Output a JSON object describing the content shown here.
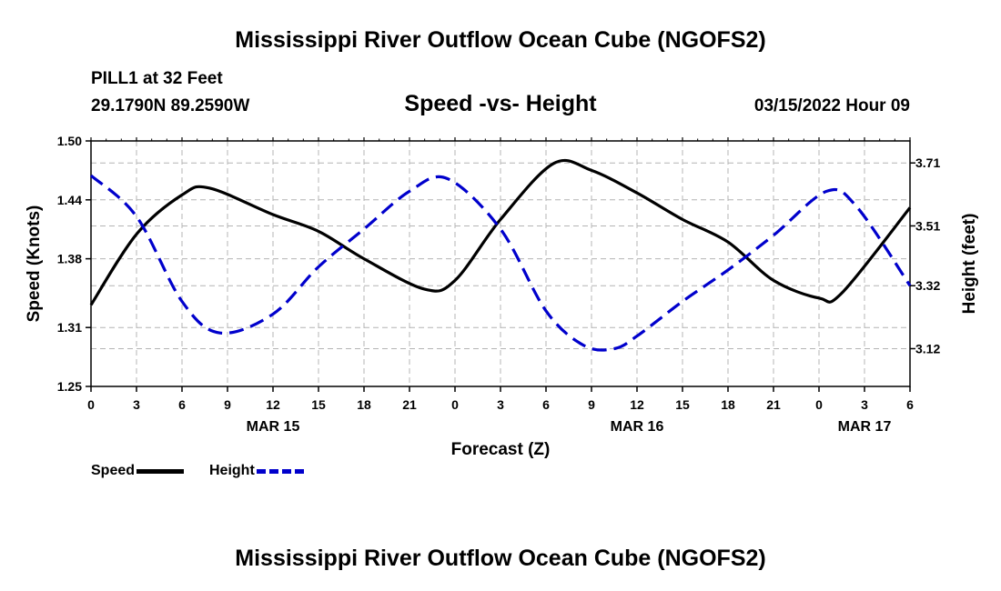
{
  "page": {
    "title": "Mississippi River Outflow Ocean Cube (NGOFS2)",
    "station": "PILL1 at 32 Feet",
    "coords": "29.1790N  89.2590W",
    "subtitle": "Speed -vs- Height",
    "datetime": "03/15/2022 Hour 09",
    "bottom_title": "Mississippi River Outflow Ocean Cube (NGOFS2)"
  },
  "legend": {
    "speed_label": "Speed",
    "height_label": "Height"
  },
  "colors": {
    "speed": "#000000",
    "height": "#0000cc",
    "grid": "#b4b4b4"
  },
  "chart_data": {
    "type": "line",
    "title": "Speed -vs- Height",
    "xlabel": "Forecast (Z)",
    "ylabel": "Speed (Knots)",
    "y2label": "Height (feet)",
    "x_range": [
      0,
      54
    ],
    "x_tick_labels": [
      "0",
      "3",
      "6",
      "9",
      "12",
      "15",
      "18",
      "21",
      "0",
      "3",
      "6",
      "9",
      "12",
      "15",
      "18",
      "21",
      "0",
      "3",
      "6"
    ],
    "date_labels": [
      {
        "hour": 12,
        "label": "MAR 15"
      },
      {
        "hour": 36,
        "label": "MAR 16"
      },
      {
        "hour": 51,
        "label": "MAR 17"
      }
    ],
    "ylim": [
      1.25,
      1.5
    ],
    "y_ticks": [
      "1.25",
      "1.31",
      "1.38",
      "1.44",
      "1.50"
    ],
    "y2lim": [
      3.0,
      3.78
    ],
    "y2_ticks": [
      "3.12",
      "3.32",
      "3.51",
      "3.71"
    ],
    "grid": true,
    "series": [
      {
        "name": "Speed",
        "axis": "left",
        "style": "solid",
        "x": [
          0,
          3,
          6,
          7.8,
          12,
          15,
          18,
          22,
          24,
          27,
          30.5,
          33,
          36,
          39,
          42,
          45,
          48,
          49.5,
          54
        ],
        "values": [
          1.333,
          1.405,
          1.445,
          1.452,
          1.425,
          1.408,
          1.38,
          1.349,
          1.358,
          1.42,
          1.477,
          1.47,
          1.447,
          1.42,
          1.397,
          1.358,
          1.34,
          1.345,
          1.432
        ]
      },
      {
        "name": "Height",
        "axis": "right",
        "style": "dashed",
        "x": [
          0,
          3,
          6,
          8.5,
          12,
          15,
          18,
          21,
          23.5,
          27,
          30,
          32.5,
          34.5,
          36,
          39,
          42,
          45,
          48.5,
          50.5,
          54
        ],
        "values": [
          3.67,
          3.54,
          3.27,
          3.17,
          3.23,
          3.38,
          3.5,
          3.62,
          3.66,
          3.5,
          3.24,
          3.13,
          3.12,
          3.16,
          3.27,
          3.37,
          3.48,
          3.62,
          3.57,
          3.32
        ]
      }
    ]
  }
}
